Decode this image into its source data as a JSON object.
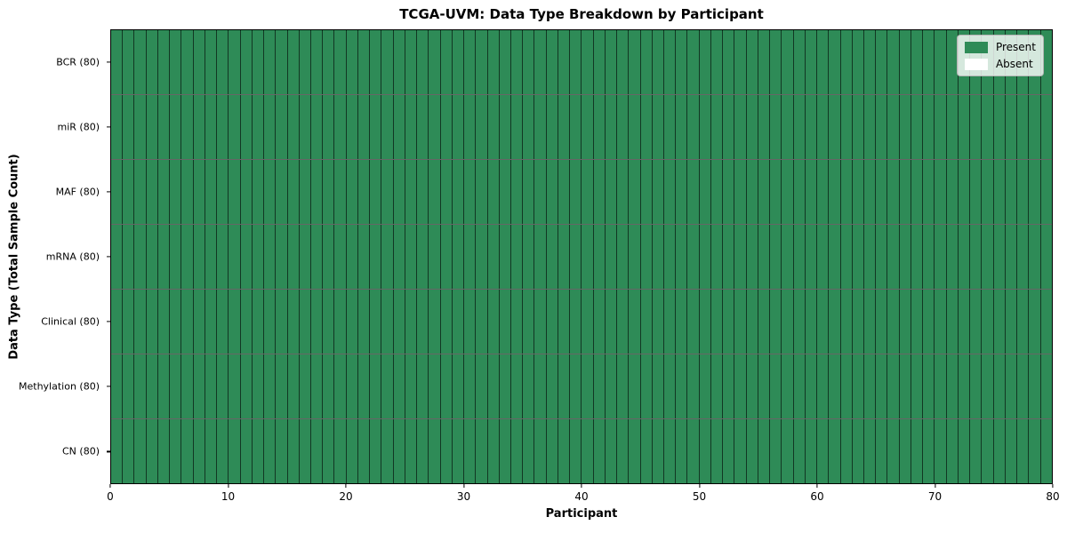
{
  "chart_data": {
    "type": "heatmap",
    "title": "TCGA-UVM: Data Type Breakdown by Participant",
    "xlabel": "Participant",
    "ylabel": "Data Type (Total Sample Count)",
    "x_range": [
      0,
      80
    ],
    "x_ticks": [
      0,
      10,
      20,
      30,
      40,
      50,
      60,
      70,
      80
    ],
    "n_participants": 80,
    "rows": [
      {
        "label": "BCR (80)",
        "data_type": "BCR",
        "total_sample_count": 80,
        "present_count": 80,
        "absent_count": 0
      },
      {
        "label": "miR (80)",
        "data_type": "miR",
        "total_sample_count": 80,
        "present_count": 80,
        "absent_count": 0
      },
      {
        "label": "MAF (80)",
        "data_type": "MAF",
        "total_sample_count": 80,
        "present_count": 80,
        "absent_count": 0
      },
      {
        "label": "mRNA (80)",
        "data_type": "mRNA",
        "total_sample_count": 80,
        "present_count": 80,
        "absent_count": 0
      },
      {
        "label": "Clinical (80)",
        "data_type": "Clinical",
        "total_sample_count": 80,
        "present_count": 80,
        "absent_count": 0
      },
      {
        "label": "Methylation (80)",
        "data_type": "Methylation",
        "total_sample_count": 80,
        "present_count": 80,
        "absent_count": 0
      },
      {
        "label": "CN (80)",
        "data_type": "CN",
        "total_sample_count": 80,
        "present_count": 80,
        "absent_count": 0
      }
    ],
    "legend": {
      "position": "upper right",
      "entries": [
        {
          "label": "Present",
          "color": "#2e8b57"
        },
        {
          "label": "Absent",
          "color": "#ffffff"
        }
      ]
    },
    "colors": {
      "present": "#2e8b57",
      "absent": "#ffffff",
      "cell_edge": "rgba(0,0,0,0.60)",
      "axis": "#000000"
    },
    "grid": "per-cell borders, 7 rows x 80 columns"
  }
}
